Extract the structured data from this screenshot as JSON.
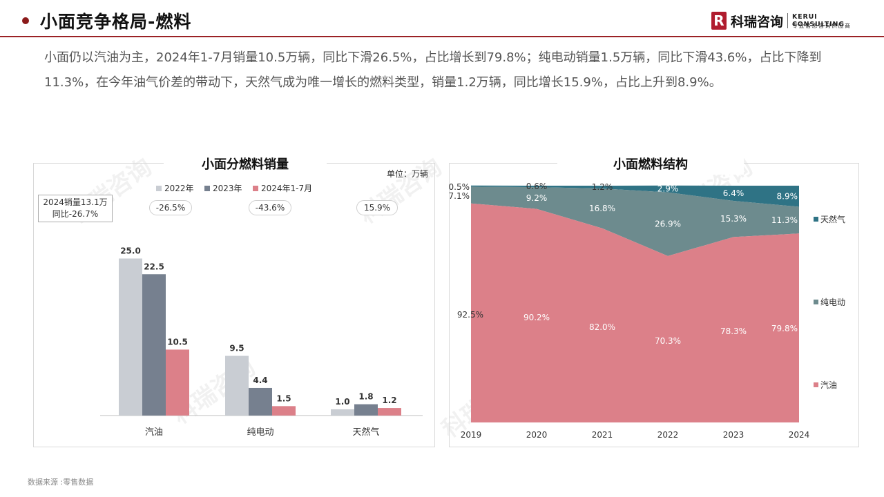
{
  "header": {
    "title": "小面竞争格局-燃料",
    "logo_cn": "科瑞咨询",
    "logo_en": "KERUI CONSULTING",
    "logo_sub": "专业信息咨询供应商",
    "logo_letter": "R"
  },
  "summary": "小面仍以汽油为主，2024年1-7月销量10.5万辆，同比下滑26.5%，占比增长到79.8%；纯电动销量1.5万辆，同比下滑43.6%，占比下降到11.3%，在今年油气价差的带动下，天然气成为唯一增长的燃料类型，销量1.2万辆，同比增长15.9%，占比上升到8.9%。",
  "watermark": "科瑞咨询",
  "source": "数据来源 :零售数据",
  "colors": {
    "c2022": "#c9cdd3",
    "c2023": "#76808f",
    "c2024": "#dc8089",
    "gas": "#dc8089",
    "ev": "#6d8b8e",
    "ng": "#2f7385"
  },
  "chart_data": [
    {
      "type": "bar",
      "title": "小面分燃料销量",
      "unit": "单位：万辆",
      "categories": [
        "汽油",
        "纯电动",
        "天然气"
      ],
      "series": [
        {
          "name": "2022年",
          "values": [
            25.0,
            9.5,
            1.0
          ]
        },
        {
          "name": "2023年",
          "values": [
            22.5,
            4.4,
            1.8
          ]
        },
        {
          "name": "2024年1-7月",
          "values": [
            10.5,
            1.5,
            1.2
          ]
        }
      ],
      "yoy_labels": [
        "-26.5%",
        "-43.6%",
        "15.9%"
      ],
      "callout": {
        "line1": "2024销量13.1万",
        "line2": "同比-26.7%"
      },
      "legend": "top"
    },
    {
      "type": "area",
      "stacked": true,
      "percent": true,
      "title": "小面燃料结构",
      "x": [
        "2019",
        "2020",
        "2021",
        "2022",
        "2023",
        "2024"
      ],
      "series": [
        {
          "name": "汽油",
          "values": [
            92.5,
            90.2,
            82.0,
            70.3,
            78.3,
            79.8
          ]
        },
        {
          "name": "纯电动",
          "values": [
            7.1,
            9.2,
            16.8,
            26.9,
            15.3,
            11.3
          ]
        },
        {
          "name": "天然气",
          "values": [
            0.5,
            0.6,
            1.2,
            2.9,
            6.4,
            8.9
          ]
        }
      ],
      "legend": "right"
    }
  ]
}
